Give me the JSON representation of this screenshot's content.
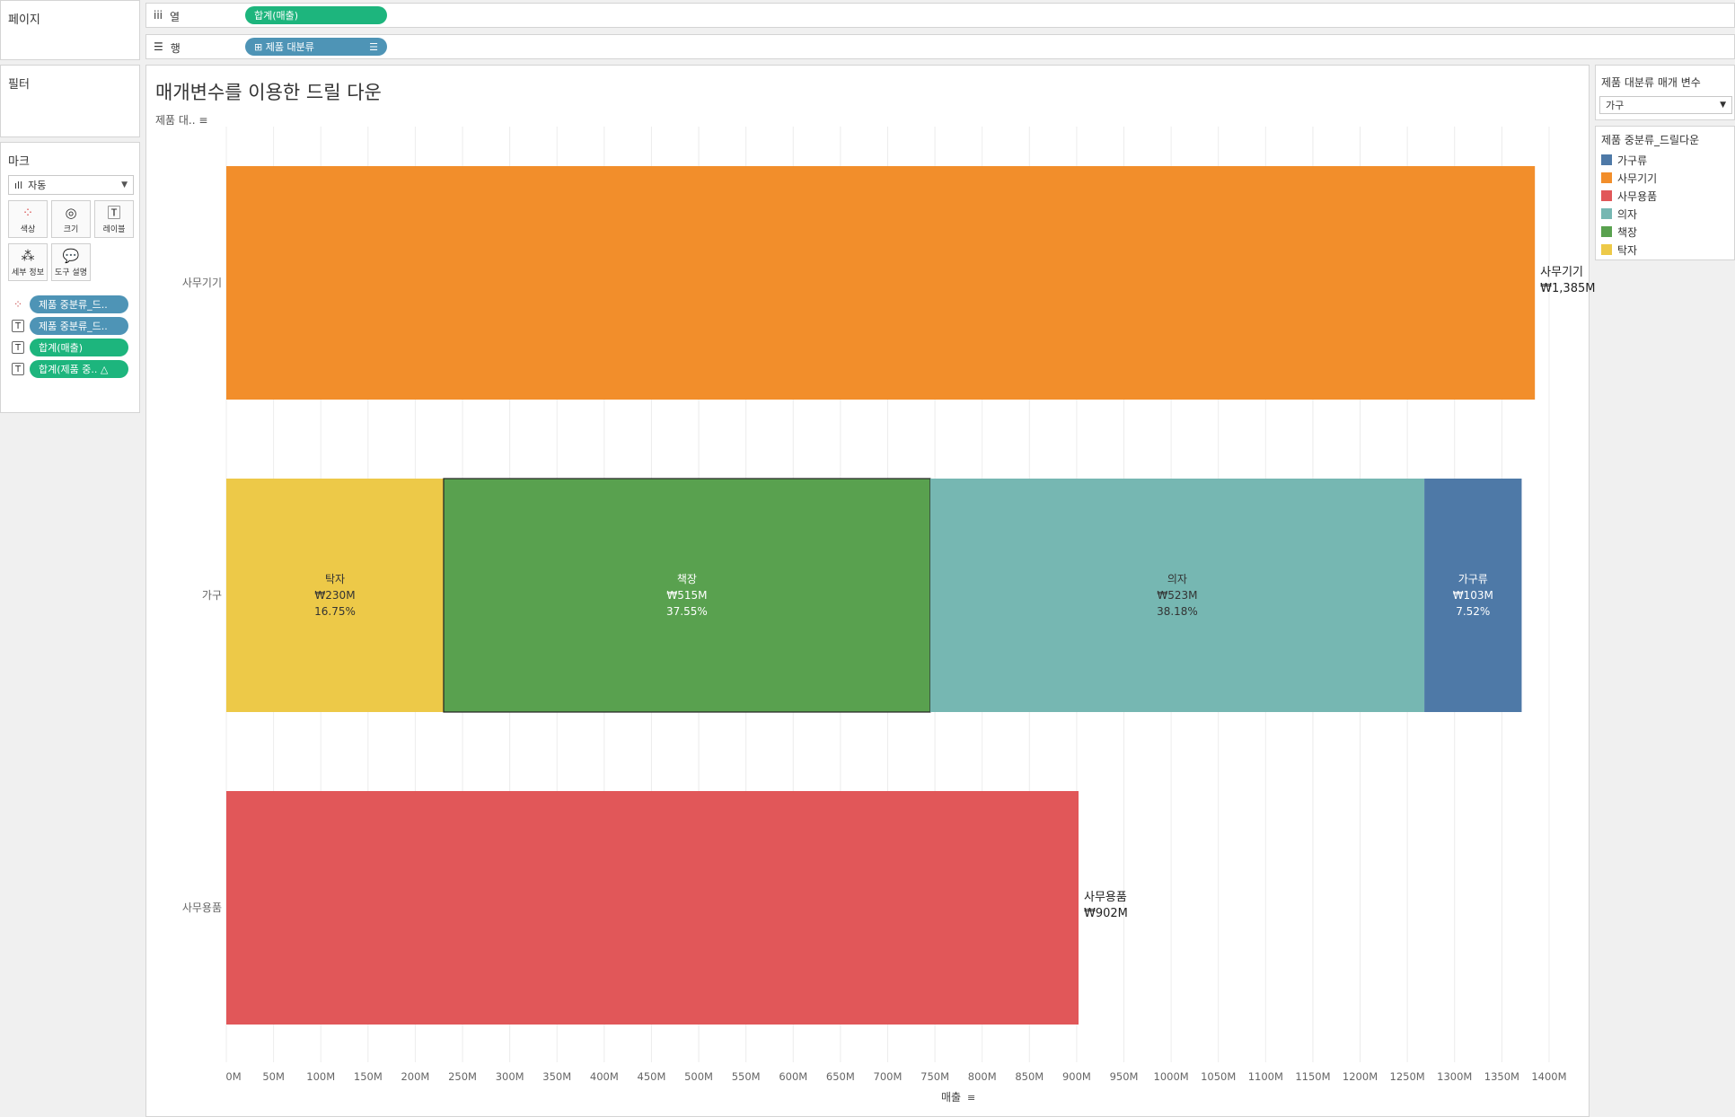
{
  "shelves": {
    "pages_label": "페이지",
    "filters_label": "필터",
    "columns": {
      "icon": "iii",
      "label": "열",
      "pill": "합계(매출)"
    },
    "rows": {
      "icon": "☰",
      "label": "행",
      "pill": "⊞ 제품 대분류",
      "sort_icon": "sort-descending-icon"
    }
  },
  "marks": {
    "title": "마크",
    "type": "자동",
    "cards": [
      {
        "icon": "color-dots-icon",
        "label": "색상"
      },
      {
        "icon": "size-icon",
        "label": "크기"
      },
      {
        "icon": "text-icon",
        "label": "레이블"
      },
      {
        "icon": "detail-icon",
        "label": "세부 정보"
      },
      {
        "icon": "tooltip-icon",
        "label": "도구 설명"
      }
    ],
    "pills": [
      {
        "kind": "color",
        "text": "제품 중분류_드..",
        "color": "blue"
      },
      {
        "kind": "label",
        "text": "제품 중분류_드..",
        "color": "blue"
      },
      {
        "kind": "label",
        "text": "합계(매출)",
        "color": "green"
      },
      {
        "kind": "label",
        "text": "합계(제품 중.. △",
        "color": "green"
      }
    ]
  },
  "view": {
    "title": "매개변수를 이용한 드릴 다운",
    "row_header": "제품 대..",
    "x_axis_title": "매출"
  },
  "parameter": {
    "title": "제품 대분류 매개 변수",
    "value": "가구"
  },
  "legend": {
    "title": "제품 중분류_드릴다운",
    "items": [
      {
        "name": "가구류",
        "color": "#4e79a7"
      },
      {
        "name": "사무기기",
        "color": "#f28e2b"
      },
      {
        "name": "사무용품",
        "color": "#e15759"
      },
      {
        "name": "의자",
        "color": "#76b7b2"
      },
      {
        "name": "책장",
        "color": "#59a14f"
      },
      {
        "name": "탁자",
        "color": "#edc948"
      }
    ]
  },
  "chart_data": {
    "type": "bar",
    "orientation": "horizontal",
    "stacked": true,
    "xlim": [
      0,
      1420
    ],
    "x_unit": "M",
    "x_ticks": [
      "0M",
      "50M",
      "100M",
      "150M",
      "200M",
      "250M",
      "300M",
      "350M",
      "400M",
      "450M",
      "500M",
      "550M",
      "600M",
      "650M",
      "700M",
      "750M",
      "800M",
      "850M",
      "900M",
      "950M",
      "1000M",
      "1050M",
      "1100M",
      "1150M",
      "1200M",
      "1250M",
      "1300M",
      "1350M",
      "1400M"
    ],
    "xlabel": "매출",
    "categories": [
      "사무기기",
      "가구",
      "사무용품"
    ],
    "rows": [
      {
        "category": "사무기기",
        "segments": [
          {
            "name": "사무기기",
            "value": 1385,
            "color": "#f28e2b"
          }
        ],
        "end_label": [
          "사무기기",
          "₩1,385M"
        ]
      },
      {
        "category": "가구",
        "segments": [
          {
            "name": "탁자",
            "value": 230,
            "label": [
              "탁자",
              "₩230M",
              "16.75%"
            ],
            "color": "#edc948",
            "text_color": "#333333"
          },
          {
            "name": "책장",
            "value": 515,
            "label": [
              "책장",
              "₩515M",
              "37.55%"
            ],
            "color": "#59a14f",
            "text_color": "#ffffff",
            "selected": true
          },
          {
            "name": "의자",
            "value": 523,
            "label": [
              "의자",
              "₩523M",
              "38.18%"
            ],
            "color": "#76b7b2",
            "text_color": "#333333"
          },
          {
            "name": "가구류",
            "value": 103,
            "label": [
              "가구류",
              "₩103M",
              "7.52%"
            ],
            "color": "#4e79a7",
            "text_color": "#ffffff"
          }
        ]
      },
      {
        "category": "사무용품",
        "segments": [
          {
            "name": "사무용품",
            "value": 902,
            "color": "#e15759"
          }
        ],
        "end_label": [
          "사무용품",
          "₩902M"
        ]
      }
    ],
    "grid": true
  }
}
